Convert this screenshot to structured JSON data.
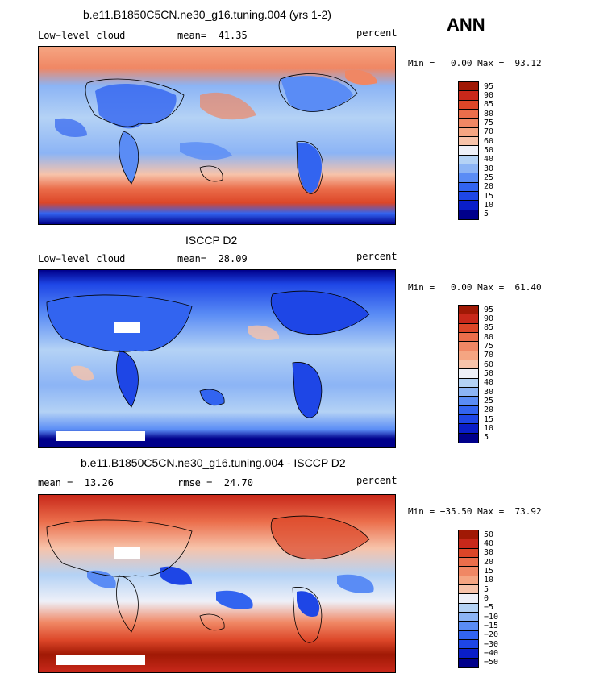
{
  "season": "ANN",
  "colors": {
    "absolute": [
      "#00008b",
      "#0a1ec8",
      "#1e46e6",
      "#3264f0",
      "#5a8cf5",
      "#8cb4f5",
      "#b4d2f5",
      "#eef0f8",
      "#f7c3aa",
      "#f5a582",
      "#f08764",
      "#eb6e4b",
      "#dc4628",
      "#c8281a",
      "#a01905"
    ],
    "difference": [
      "#00008b",
      "#0a1ec8",
      "#1e46e6",
      "#3264f0",
      "#5a8cf5",
      "#8cb4f5",
      "#b4d2f5",
      "#eef0f8",
      "#f7c3aa",
      "#f5a582",
      "#f08764",
      "#eb6e4b",
      "#dc4628",
      "#c8281a",
      "#a01905"
    ]
  },
  "panels": [
    {
      "title": "b.e11.B1850C5CN.ne30_g16.tuning.004 (yrs 1-2)",
      "left": "Low−level cloud",
      "center": "mean=  41.35",
      "right": "percent",
      "minmax": "Min =   0.00 Max =  93.12",
      "levels": [
        "95",
        "90",
        "85",
        "80",
        "75",
        "70",
        "60",
        "50",
        "40",
        "30",
        "25",
        "20",
        "15",
        "10",
        "5"
      ]
    },
    {
      "title": "ISCCP D2",
      "left": "Low−level cloud",
      "center": "mean=  28.09",
      "right": "percent",
      "minmax": "Min =   0.00 Max =  61.40",
      "levels": [
        "95",
        "90",
        "85",
        "80",
        "75",
        "70",
        "60",
        "50",
        "40",
        "30",
        "25",
        "20",
        "15",
        "10",
        "5"
      ]
    },
    {
      "title": "b.e11.B1850C5CN.ne30_g16.tuning.004 - ISCCP D2",
      "left": "mean =  13.26",
      "center": "rmse =  24.70",
      "right": "percent",
      "minmax": "Min = −35.50 Max =  73.92",
      "levels": [
        "50",
        "40",
        "30",
        "20",
        "15",
        "10",
        "5",
        "0",
        "−5",
        "−10",
        "−15",
        "−20",
        "−30",
        "−40",
        "−50"
      ]
    }
  ],
  "chart_data": [
    {
      "type": "heatmap",
      "title": "b.e11.B1850C5CN.ne30_g16.tuning.004 (yrs 1-2)",
      "variable": "Low−level cloud",
      "units": "percent",
      "mean": 41.35,
      "min": 0.0,
      "max": 93.12,
      "contour_levels": [
        5,
        10,
        15,
        20,
        25,
        30,
        40,
        50,
        60,
        70,
        75,
        80,
        85,
        90,
        95
      ]
    },
    {
      "type": "heatmap",
      "title": "ISCCP D2",
      "variable": "Low−level cloud",
      "units": "percent",
      "mean": 28.09,
      "min": 0.0,
      "max": 61.4,
      "contour_levels": [
        5,
        10,
        15,
        20,
        25,
        30,
        40,
        50,
        60,
        70,
        75,
        80,
        85,
        90,
        95
      ]
    },
    {
      "type": "heatmap",
      "title": "b.e11.B1850C5CN.ne30_g16.tuning.004 - ISCCP D2",
      "units": "percent",
      "mean": 13.26,
      "rmse": 24.7,
      "min": -35.5,
      "max": 73.92,
      "contour_levels": [
        -50,
        -40,
        -30,
        -20,
        -15,
        -10,
        -5,
        0,
        5,
        10,
        15,
        20,
        30,
        40,
        50
      ]
    }
  ]
}
